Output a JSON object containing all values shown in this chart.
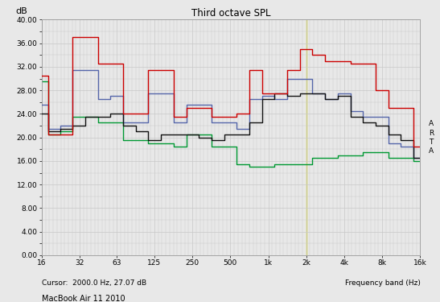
{
  "title": "Third octave SPL",
  "ylabel": "dB",
  "xlabel_right": "Frequency band (Hz)",
  "cursor_text": "Cursor:  2000.0 Hz, 27.07 dB",
  "device_text": "MacBook Air 11 2010",
  "arta_text": "A\nR\nT\nA",
  "ylim": [
    0,
    40
  ],
  "yticks": [
    0,
    4,
    8,
    12,
    16,
    20,
    24,
    28,
    32,
    36,
    40
  ],
  "ytick_labels": [
    "0.00",
    "4.00",
    "8.00",
    "12.00",
    "16.00",
    "20.00",
    "24.00",
    "28.00",
    "32.00",
    "36.00",
    "40.00"
  ],
  "xtick_positions": [
    16,
    32,
    63,
    125,
    250,
    500,
    1000,
    2000,
    4000,
    8000,
    16000
  ],
  "xtick_labels": [
    "16",
    "32",
    "63",
    "125",
    "250",
    "500",
    "1k",
    "2k",
    "4k",
    "8k",
    "16k"
  ],
  "cursor_x": 2000,
  "bg_color": "#e8e8e8",
  "grid_color": "#c8c8c8",
  "freqs": [
    16,
    20,
    25,
    31.5,
    40,
    50,
    63,
    80,
    100,
    125,
    160,
    200,
    250,
    315,
    400,
    500,
    630,
    800,
    1000,
    1250,
    1600,
    2000,
    2500,
    3150,
    4000,
    5000,
    6300,
    8000,
    10000,
    12500,
    16000
  ],
  "red_values": [
    30.5,
    20.5,
    20.5,
    37.0,
    37.0,
    32.5,
    32.5,
    24.0,
    24.0,
    31.5,
    31.5,
    23.5,
    25.0,
    25.0,
    23.5,
    23.5,
    24.0,
    31.5,
    27.5,
    27.5,
    31.5,
    35.0,
    34.0,
    33.0,
    33.0,
    32.5,
    32.5,
    28.0,
    25.0,
    25.0,
    18.5
  ],
  "black_values": [
    24.0,
    21.0,
    21.5,
    22.0,
    23.5,
    23.5,
    24.0,
    22.0,
    21.0,
    19.5,
    20.5,
    20.5,
    20.5,
    20.0,
    19.5,
    20.5,
    20.5,
    22.5,
    26.5,
    27.5,
    27.0,
    27.5,
    27.5,
    26.5,
    27.0,
    23.5,
    22.5,
    22.0,
    20.5,
    19.5,
    16.5
  ],
  "blue_values": [
    25.5,
    21.5,
    22.0,
    31.5,
    31.5,
    26.5,
    27.0,
    22.5,
    22.5,
    27.5,
    27.5,
    22.5,
    25.5,
    25.5,
    22.5,
    22.5,
    21.5,
    26.5,
    27.0,
    26.5,
    30.0,
    30.0,
    27.5,
    26.5,
    27.5,
    24.5,
    23.5,
    23.5,
    19.0,
    18.5,
    16.5
  ],
  "green_values": [
    29.5,
    20.5,
    21.0,
    23.5,
    23.5,
    22.5,
    22.5,
    19.5,
    19.5,
    19.0,
    19.0,
    18.5,
    20.5,
    20.5,
    18.5,
    18.5,
    15.5,
    15.0,
    15.0,
    15.5,
    15.5,
    15.5,
    16.5,
    16.5,
    17.0,
    17.0,
    17.5,
    17.5,
    16.5,
    16.5,
    16.0
  ],
  "red_color": "#cc0000",
  "black_color": "#111111",
  "blue_color": "#5566aa",
  "green_color": "#009933",
  "cursor_color": "#cccc00",
  "line_width": 1.0
}
